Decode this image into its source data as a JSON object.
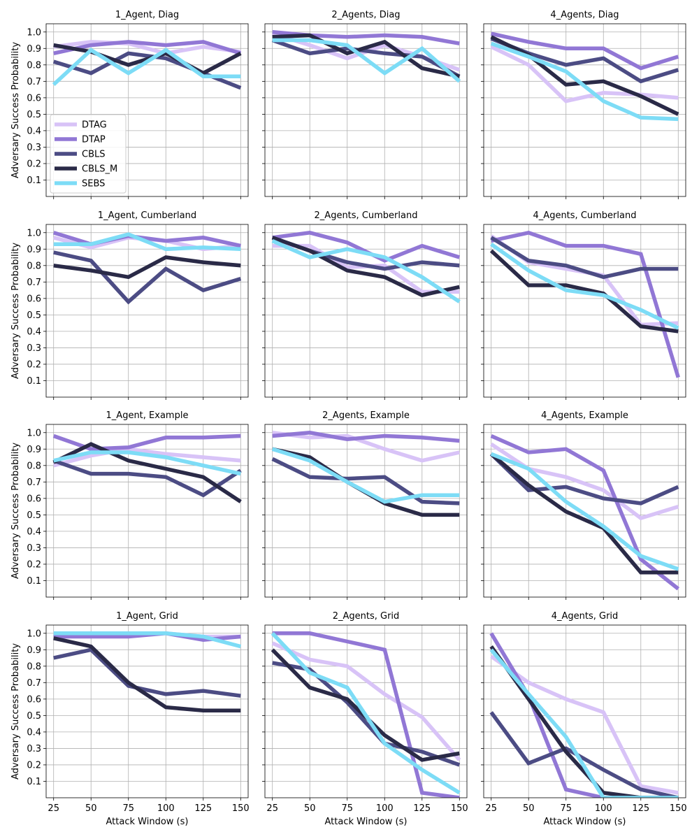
{
  "figure": {
    "x_label": "Attack Window (s)",
    "y_label": "Adversary Success Probability"
  },
  "axes": {
    "x_ticks": [
      25,
      50,
      75,
      100,
      125,
      150
    ],
    "y_ticks": [
      0.1,
      0.2,
      0.3,
      0.4,
      0.5,
      0.6,
      0.7,
      0.8,
      0.9,
      1.0
    ],
    "xlim": [
      20,
      155
    ],
    "ylim": [
      0,
      1.05
    ],
    "grid": true
  },
  "legend": {
    "placement": "lower-left of first panel",
    "entries": [
      "DTAG",
      "DTAP",
      "CBLS",
      "CBLS_M",
      "SEBS"
    ]
  },
  "chart_data": [
    {
      "type": "line",
      "title": "1_Agent, Diag",
      "x": [
        25,
        50,
        75,
        100,
        125,
        150
      ],
      "series": [
        {
          "name": "DTAG",
          "color": "#d8c3f7",
          "values": [
            0.91,
            0.94,
            0.93,
            0.87,
            0.91,
            0.88
          ]
        },
        {
          "name": "DTAP",
          "color": "#9177d5",
          "values": [
            0.87,
            0.92,
            0.94,
            0.92,
            0.94,
            0.87
          ]
        },
        {
          "name": "CBLS",
          "color": "#4c4c84",
          "values": [
            0.82,
            0.75,
            0.87,
            0.84,
            0.75,
            0.66
          ]
        },
        {
          "name": "CBLS_M",
          "color": "#2a2a47",
          "values": [
            0.92,
            0.88,
            0.8,
            0.87,
            0.75,
            0.87
          ]
        },
        {
          "name": "SEBS",
          "color": "#7ddcf6",
          "values": [
            0.68,
            0.89,
            0.75,
            0.89,
            0.73,
            0.73
          ]
        }
      ]
    },
    {
      "type": "line",
      "title": "2_Agents, Diag",
      "x": [
        25,
        50,
        75,
        100,
        125,
        150
      ],
      "series": [
        {
          "name": "DTAG",
          "color": "#d8c3f7",
          "values": [
            0.99,
            0.92,
            0.84,
            0.92,
            0.85,
            0.77
          ]
        },
        {
          "name": "DTAP",
          "color": "#9177d5",
          "values": [
            1.0,
            0.98,
            0.97,
            0.98,
            0.97,
            0.93
          ]
        },
        {
          "name": "CBLS",
          "color": "#4c4c84",
          "values": [
            0.95,
            0.87,
            0.9,
            0.87,
            0.85,
            0.73
          ]
        },
        {
          "name": "CBLS_M",
          "color": "#2a2a47",
          "values": [
            0.97,
            0.98,
            0.87,
            0.94,
            0.78,
            0.73
          ]
        },
        {
          "name": "SEBS",
          "color": "#7ddcf6",
          "values": [
            0.95,
            0.95,
            0.92,
            0.75,
            0.9,
            0.7
          ]
        }
      ]
    },
    {
      "type": "line",
      "title": "4_Agents, Diag",
      "x": [
        25,
        50,
        75,
        100,
        125,
        150
      ],
      "series": [
        {
          "name": "DTAG",
          "color": "#d8c3f7",
          "values": [
            0.91,
            0.8,
            0.58,
            0.63,
            0.62,
            0.6
          ]
        },
        {
          "name": "DTAP",
          "color": "#9177d5",
          "values": [
            0.99,
            0.94,
            0.9,
            0.9,
            0.78,
            0.85
          ]
        },
        {
          "name": "CBLS",
          "color": "#4c4c84",
          "values": [
            0.96,
            0.87,
            0.8,
            0.84,
            0.7,
            0.77
          ]
        },
        {
          "name": "CBLS_M",
          "color": "#2a2a47",
          "values": [
            0.97,
            0.86,
            0.68,
            0.7,
            0.61,
            0.5
          ]
        },
        {
          "name": "SEBS",
          "color": "#7ddcf6",
          "values": [
            0.93,
            0.85,
            0.76,
            0.58,
            0.48,
            0.47
          ]
        }
      ]
    },
    {
      "type": "line",
      "title": "1_Agent, Cumberland",
      "x": [
        25,
        50,
        75,
        100,
        125,
        150
      ],
      "series": [
        {
          "name": "DTAG",
          "color": "#d8c3f7",
          "values": [
            0.97,
            0.91,
            0.97,
            0.95,
            0.9,
            0.92
          ]
        },
        {
          "name": "DTAP",
          "color": "#9177d5",
          "values": [
            1.0,
            0.93,
            0.98,
            0.95,
            0.97,
            0.92
          ]
        },
        {
          "name": "CBLS",
          "color": "#4c4c84",
          "values": [
            0.88,
            0.83,
            0.58,
            0.78,
            0.65,
            0.72
          ]
        },
        {
          "name": "CBLS_M",
          "color": "#2a2a47",
          "values": [
            0.8,
            0.77,
            0.73,
            0.85,
            0.82,
            0.8
          ]
        },
        {
          "name": "SEBS",
          "color": "#7ddcf6",
          "values": [
            0.93,
            0.93,
            0.99,
            0.9,
            0.91,
            0.9
          ]
        }
      ]
    },
    {
      "type": "line",
      "title": "2_Agents, Cumberland",
      "x": [
        25,
        50,
        75,
        100,
        125,
        150
      ],
      "series": [
        {
          "name": "DTAG",
          "color": "#d8c3f7",
          "values": [
            0.92,
            0.92,
            0.79,
            0.8,
            0.64,
            0.64
          ]
        },
        {
          "name": "DTAP",
          "color": "#9177d5",
          "values": [
            0.97,
            1.0,
            0.94,
            0.83,
            0.92,
            0.85
          ]
        },
        {
          "name": "CBLS",
          "color": "#4c4c84",
          "values": [
            0.97,
            0.89,
            0.82,
            0.78,
            0.82,
            0.8
          ]
        },
        {
          "name": "CBLS_M",
          "color": "#2a2a47",
          "values": [
            0.97,
            0.89,
            0.77,
            0.73,
            0.62,
            0.67
          ]
        },
        {
          "name": "SEBS",
          "color": "#7ddcf6",
          "values": [
            0.95,
            0.85,
            0.9,
            0.85,
            0.73,
            0.58
          ]
        }
      ]
    },
    {
      "type": "line",
      "title": "4_Agents, Cumberland",
      "x": [
        25,
        50,
        75,
        100,
        125,
        150
      ],
      "series": [
        {
          "name": "DTAG",
          "color": "#d8c3f7",
          "values": [
            0.98,
            0.82,
            0.78,
            0.74,
            0.44,
            0.45
          ]
        },
        {
          "name": "DTAP",
          "color": "#9177d5",
          "values": [
            0.95,
            1.0,
            0.92,
            0.92,
            0.87,
            0.12
          ]
        },
        {
          "name": "CBLS",
          "color": "#4c4c84",
          "values": [
            0.97,
            0.83,
            0.8,
            0.73,
            0.78,
            0.78
          ]
        },
        {
          "name": "CBLS_M",
          "color": "#2a2a47",
          "values": [
            0.89,
            0.68,
            0.68,
            0.63,
            0.43,
            0.4
          ]
        },
        {
          "name": "SEBS",
          "color": "#7ddcf6",
          "values": [
            0.93,
            0.77,
            0.65,
            0.62,
            0.53,
            0.42
          ]
        }
      ]
    },
    {
      "type": "line",
      "title": "1_Agent, Example",
      "x": [
        25,
        50,
        75,
        100,
        125,
        150
      ],
      "series": [
        {
          "name": "DTAG",
          "color": "#d8c3f7",
          "values": [
            0.8,
            0.86,
            0.9,
            0.87,
            0.85,
            0.83
          ]
        },
        {
          "name": "DTAP",
          "color": "#9177d5",
          "values": [
            0.98,
            0.9,
            0.91,
            0.97,
            0.97,
            0.98
          ]
        },
        {
          "name": "CBLS",
          "color": "#4c4c84",
          "values": [
            0.83,
            0.75,
            0.75,
            0.73,
            0.62,
            0.77
          ]
        },
        {
          "name": "CBLS_M",
          "color": "#2a2a47",
          "values": [
            0.82,
            0.93,
            0.83,
            0.78,
            0.73,
            0.58
          ]
        },
        {
          "name": "SEBS",
          "color": "#7ddcf6",
          "values": [
            0.83,
            0.88,
            0.88,
            0.85,
            0.8,
            0.75
          ]
        }
      ]
    },
    {
      "type": "line",
      "title": "2_Agents, Example",
      "x": [
        25,
        50,
        75,
        100,
        125,
        150
      ],
      "series": [
        {
          "name": "DTAG",
          "color": "#d8c3f7",
          "values": [
            1.0,
            0.97,
            0.98,
            0.9,
            0.83,
            0.88
          ]
        },
        {
          "name": "DTAP",
          "color": "#9177d5",
          "values": [
            0.98,
            1.0,
            0.96,
            0.98,
            0.97,
            0.95
          ]
        },
        {
          "name": "CBLS",
          "color": "#4c4c84",
          "values": [
            0.84,
            0.73,
            0.72,
            0.73,
            0.58,
            0.57
          ]
        },
        {
          "name": "CBLS_M",
          "color": "#2a2a47",
          "values": [
            0.9,
            0.85,
            0.7,
            0.57,
            0.5,
            0.5
          ]
        },
        {
          "name": "SEBS",
          "color": "#7ddcf6",
          "values": [
            0.9,
            0.83,
            0.7,
            0.58,
            0.62,
            0.62
          ]
        }
      ]
    },
    {
      "type": "line",
      "title": "4_Agents, Example",
      "x": [
        25,
        50,
        75,
        100,
        125,
        150
      ],
      "series": [
        {
          "name": "DTAG",
          "color": "#d8c3f7",
          "values": [
            0.93,
            0.78,
            0.73,
            0.65,
            0.48,
            0.55
          ]
        },
        {
          "name": "DTAP",
          "color": "#9177d5",
          "values": [
            0.98,
            0.88,
            0.9,
            0.77,
            0.23,
            0.05
          ]
        },
        {
          "name": "CBLS",
          "color": "#4c4c84",
          "values": [
            0.87,
            0.65,
            0.67,
            0.6,
            0.57,
            0.67
          ]
        },
        {
          "name": "CBLS_M",
          "color": "#2a2a47",
          "values": [
            0.87,
            0.68,
            0.52,
            0.42,
            0.15,
            0.15
          ]
        },
        {
          "name": "SEBS",
          "color": "#7ddcf6",
          "values": [
            0.87,
            0.78,
            0.58,
            0.43,
            0.25,
            0.17
          ]
        }
      ]
    },
    {
      "type": "line",
      "title": "1_Agent, Grid",
      "x": [
        25,
        50,
        75,
        100,
        125,
        150
      ],
      "series": [
        {
          "name": "DTAG",
          "color": "#d8c3f7",
          "values": [
            1.0,
            1.0,
            1.0,
            1.0,
            0.98,
            0.98
          ]
        },
        {
          "name": "DTAP",
          "color": "#9177d5",
          "values": [
            0.98,
            0.98,
            0.98,
            1.0,
            0.96,
            0.98
          ]
        },
        {
          "name": "CBLS",
          "color": "#4c4c84",
          "values": [
            0.85,
            0.9,
            0.68,
            0.63,
            0.65,
            0.62
          ]
        },
        {
          "name": "CBLS_M",
          "color": "#2a2a47",
          "values": [
            0.97,
            0.92,
            0.7,
            0.55,
            0.53,
            0.53
          ]
        },
        {
          "name": "SEBS",
          "color": "#7ddcf6",
          "values": [
            1.0,
            1.0,
            1.0,
            1.0,
            0.98,
            0.92
          ]
        }
      ]
    },
    {
      "type": "line",
      "title": "2_Agents, Grid",
      "x": [
        25,
        50,
        75,
        100,
        125,
        150
      ],
      "series": [
        {
          "name": "DTAG",
          "color": "#d8c3f7",
          "values": [
            0.94,
            0.84,
            0.8,
            0.63,
            0.49,
            0.23
          ]
        },
        {
          "name": "DTAP",
          "color": "#9177d5",
          "values": [
            1.0,
            1.0,
            0.95,
            0.9,
            0.03,
            0.0
          ]
        },
        {
          "name": "CBLS",
          "color": "#4c4c84",
          "values": [
            0.82,
            0.78,
            0.58,
            0.33,
            0.28,
            0.2
          ]
        },
        {
          "name": "CBLS_M",
          "color": "#2a2a47",
          "values": [
            0.9,
            0.67,
            0.6,
            0.38,
            0.23,
            0.27
          ]
        },
        {
          "name": "SEBS",
          "color": "#7ddcf6",
          "values": [
            1.0,
            0.76,
            0.67,
            0.33,
            0.17,
            0.03
          ]
        }
      ]
    },
    {
      "type": "line",
      "title": "4_Agents, Grid",
      "x": [
        25,
        50,
        75,
        100,
        125,
        150
      ],
      "series": [
        {
          "name": "DTAG",
          "color": "#d8c3f7",
          "values": [
            0.86,
            0.7,
            0.6,
            0.52,
            0.07,
            0.03
          ]
        },
        {
          "name": "DTAP",
          "color": "#9177d5",
          "values": [
            1.0,
            0.62,
            0.05,
            0.0,
            0.0,
            0.0
          ]
        },
        {
          "name": "CBLS",
          "color": "#4c4c84",
          "values": [
            0.52,
            0.21,
            0.3,
            0.17,
            0.05,
            0.0
          ]
        },
        {
          "name": "CBLS_M",
          "color": "#2a2a47",
          "values": [
            0.92,
            0.6,
            0.28,
            0.03,
            0.0,
            0.0
          ]
        },
        {
          "name": "SEBS",
          "color": "#7ddcf6",
          "values": [
            0.9,
            0.63,
            0.37,
            0.0,
            0.0,
            0.0
          ]
        }
      ]
    }
  ]
}
